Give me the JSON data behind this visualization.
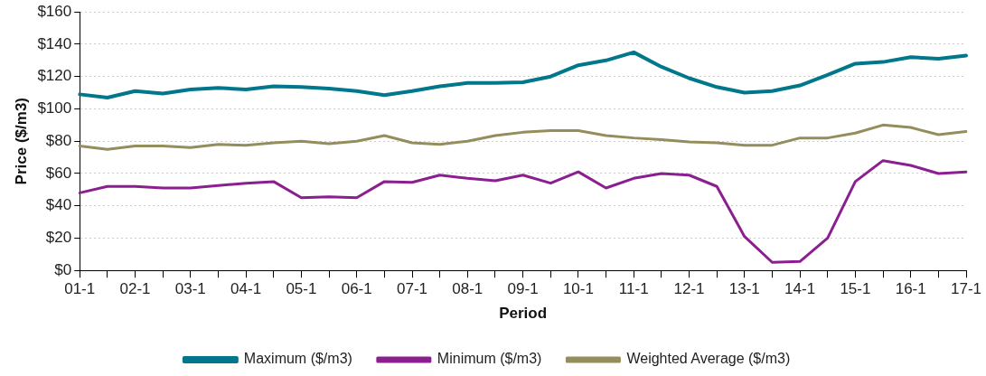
{
  "chart_data": {
    "type": "line",
    "xlabel": "Period",
    "ylabel": "Price ($/m3)",
    "categories": [
      "01-1",
      null,
      "02-1",
      null,
      "03-1",
      null,
      "04-1",
      null,
      "05-1",
      null,
      "06-1",
      null,
      "07-1",
      null,
      "08-1",
      null,
      "09-1",
      null,
      "10-1",
      null,
      "11-1",
      null,
      "12-1",
      null,
      "13-1",
      null,
      "14-1",
      null,
      "15-1",
      null,
      "16-1",
      null,
      "17-1"
    ],
    "series": [
      {
        "name": "Maximum ($/m3)",
        "color": "#00778b",
        "values": [
          109,
          107,
          111,
          109.5,
          112,
          113,
          112,
          114,
          113.5,
          112.5,
          111,
          108.5,
          111,
          114,
          116,
          116,
          116.5,
          120,
          127,
          130,
          135,
          126,
          119,
          113.5,
          110,
          111,
          114.5,
          121,
          128,
          129,
          132,
          131,
          133
        ]
      },
      {
        "name": "Minimum ($/m3)",
        "color": "#8b1f8f",
        "values": [
          48,
          52,
          52,
          51,
          51,
          52.5,
          54,
          55,
          45,
          45.5,
          45,
          55,
          54.5,
          59,
          57,
          55.5,
          59,
          54,
          61,
          51,
          57,
          60,
          59,
          52,
          21,
          5,
          5.5,
          20,
          55,
          68,
          65,
          60,
          61
        ]
      },
      {
        "name": "Weighted Average ($/m3)",
        "color": "#948d5c",
        "values": [
          77,
          75,
          77,
          77,
          76,
          78,
          77.5,
          79,
          80,
          78.5,
          80,
          83.5,
          79,
          78,
          80,
          83.5,
          85.5,
          86.5,
          86.5,
          83.5,
          82,
          81,
          79.5,
          79,
          77.5,
          77.5,
          82,
          82,
          85,
          90,
          88.5,
          84,
          86
        ]
      }
    ],
    "ylim": [
      0,
      160
    ],
    "yticks": [
      {
        "value": 0,
        "label": "$0"
      },
      {
        "value": 20,
        "label": "$20"
      },
      {
        "value": 40,
        "label": "$40"
      },
      {
        "value": 60,
        "label": "$60"
      },
      {
        "value": 80,
        "label": "$80"
      },
      {
        "value": 100,
        "label": "$100"
      },
      {
        "value": 120,
        "label": "$120"
      },
      {
        "value": 140,
        "label": "$140"
      },
      {
        "value": 160,
        "label": "$160"
      }
    ],
    "grid": "y",
    "legend": "bottom",
    "marker": "none",
    "line_style": "solid"
  }
}
